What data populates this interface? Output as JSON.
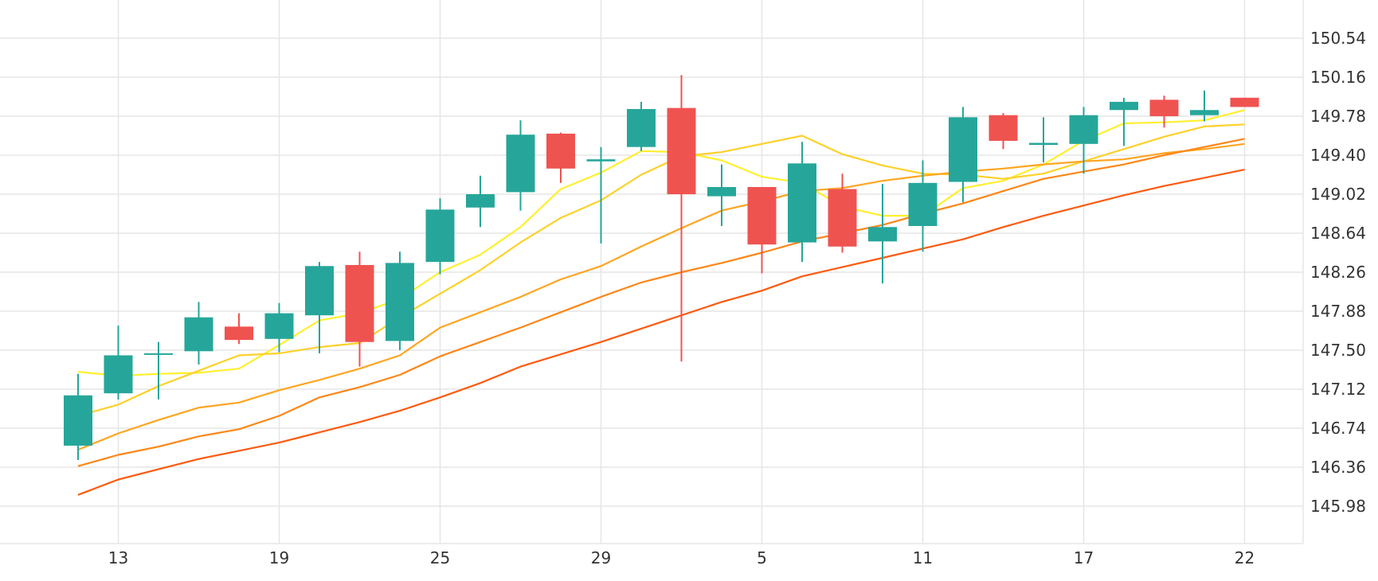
{
  "chart_data": {
    "type": "candlestick",
    "title": "",
    "xlabel": "",
    "ylabel": "",
    "x_tick_labels": [
      "13",
      "19",
      "25",
      "29",
      "5",
      "11",
      "17",
      "22"
    ],
    "x_tick_index": [
      1,
      5,
      9,
      13,
      17,
      21,
      25,
      29
    ],
    "y_tick_labels": [
      "150.54",
      "150.16",
      "149.78",
      "149.40",
      "149.02",
      "148.64",
      "148.26",
      "147.88",
      "147.50",
      "147.12",
      "146.74",
      "146.36",
      "145.98"
    ],
    "ylim": [
      145.6,
      150.84
    ],
    "grid": true,
    "colors": {
      "up": "#26a69a",
      "down": "#ef5350"
    },
    "candles": [
      {
        "open": 146.57,
        "high": 147.27,
        "low": 146.43,
        "close": 147.06
      },
      {
        "open": 147.08,
        "high": 147.74,
        "low": 147.02,
        "close": 147.45
      },
      {
        "open": 147.46,
        "high": 147.58,
        "low": 147.02,
        "close": 147.47
      },
      {
        "open": 147.49,
        "high": 147.97,
        "low": 147.36,
        "close": 147.82
      },
      {
        "open": 147.73,
        "high": 147.86,
        "low": 147.56,
        "close": 147.6
      },
      {
        "open": 147.61,
        "high": 147.96,
        "low": 147.48,
        "close": 147.86
      },
      {
        "open": 147.84,
        "high": 148.36,
        "low": 147.47,
        "close": 148.32
      },
      {
        "open": 148.33,
        "high": 148.46,
        "low": 147.34,
        "close": 147.58
      },
      {
        "open": 147.59,
        "high": 148.46,
        "low": 147.5,
        "close": 148.35
      },
      {
        "open": 148.36,
        "high": 148.98,
        "low": 148.24,
        "close": 148.87
      },
      {
        "open": 148.89,
        "high": 149.2,
        "low": 148.7,
        "close": 149.02
      },
      {
        "open": 149.04,
        "high": 149.74,
        "low": 148.86,
        "close": 149.6
      },
      {
        "open": 149.61,
        "high": 149.62,
        "low": 149.13,
        "close": 149.27
      },
      {
        "open": 149.34,
        "high": 149.48,
        "low": 148.54,
        "close": 149.36
      },
      {
        "open": 149.48,
        "high": 149.92,
        "low": 149.44,
        "close": 149.85
      },
      {
        "open": 149.86,
        "high": 150.18,
        "low": 147.39,
        "close": 149.02
      },
      {
        "open": 149.0,
        "high": 149.31,
        "low": 148.71,
        "close": 149.09
      },
      {
        "open": 149.09,
        "high": 149.09,
        "low": 148.25,
        "close": 148.53
      },
      {
        "open": 148.55,
        "high": 149.53,
        "low": 148.36,
        "close": 149.32
      },
      {
        "open": 149.07,
        "high": 149.22,
        "low": 148.45,
        "close": 148.51
      },
      {
        "open": 148.56,
        "high": 149.12,
        "low": 148.15,
        "close": 148.7
      },
      {
        "open": 148.71,
        "high": 149.35,
        "low": 148.46,
        "close": 149.13
      },
      {
        "open": 149.14,
        "high": 149.87,
        "low": 148.94,
        "close": 149.77
      },
      {
        "open": 149.79,
        "high": 149.81,
        "low": 149.46,
        "close": 149.54
      },
      {
        "open": 149.5,
        "high": 149.77,
        "low": 149.33,
        "close": 149.52
      },
      {
        "open": 149.51,
        "high": 149.87,
        "low": 149.22,
        "close": 149.79
      },
      {
        "open": 149.84,
        "high": 149.96,
        "low": 149.49,
        "close": 149.92
      },
      {
        "open": 149.94,
        "high": 149.98,
        "low": 149.67,
        "close": 149.78
      },
      {
        "open": 149.79,
        "high": 150.03,
        "low": 149.73,
        "close": 149.84
      },
      {
        "open": 149.96,
        "high": 149.96,
        "low": 149.87,
        "close": 149.87
      }
    ],
    "series": [
      {
        "color": "#ffef2e",
        "values": [
          147.29,
          147.25,
          147.27,
          147.28,
          147.32,
          147.55,
          147.79,
          147.86,
          148.0,
          148.26,
          148.43,
          148.7,
          149.07,
          149.23,
          149.44,
          149.43,
          149.35,
          149.19,
          149.13,
          148.9,
          148.81,
          148.81,
          149.08,
          149.15,
          149.31,
          149.54,
          149.71,
          149.72,
          149.74,
          149.84
        ]
      },
      {
        "color": "#fcd12a",
        "values": [
          146.86,
          146.97,
          147.15,
          147.3,
          147.45,
          147.47,
          147.53,
          147.57,
          147.82,
          148.05,
          148.28,
          148.55,
          148.79,
          148.96,
          149.21,
          149.39,
          149.43,
          149.51,
          149.59,
          149.41,
          149.3,
          149.22,
          149.21,
          149.17,
          149.22,
          149.34,
          149.46,
          149.58,
          149.68,
          149.7
        ]
      },
      {
        "color": "#ffa521",
        "values": [
          146.53,
          146.69,
          146.82,
          146.94,
          146.99,
          147.11,
          147.21,
          147.32,
          147.45,
          147.72,
          147.87,
          148.02,
          148.19,
          148.32,
          148.51,
          148.69,
          148.86,
          148.95,
          149.05,
          149.08,
          149.15,
          149.2,
          149.24,
          149.27,
          149.31,
          149.34,
          149.36,
          149.42,
          149.46,
          149.51
        ]
      },
      {
        "color": "#ff8617",
        "values": [
          146.37,
          146.48,
          146.56,
          146.66,
          146.73,
          146.86,
          147.04,
          147.14,
          147.26,
          147.44,
          147.58,
          147.72,
          147.87,
          148.02,
          148.16,
          148.26,
          148.35,
          148.45,
          148.56,
          148.64,
          148.72,
          148.83,
          148.93,
          149.05,
          149.17,
          149.24,
          149.31,
          149.4,
          149.48,
          149.56
        ]
      },
      {
        "color": "#ff5a0e",
        "values": [
          146.09,
          146.24,
          146.34,
          146.44,
          146.52,
          146.6,
          146.7,
          146.8,
          146.91,
          147.04,
          147.18,
          147.34,
          147.46,
          147.58,
          147.71,
          147.84,
          147.97,
          148.08,
          148.22,
          148.31,
          148.4,
          148.49,
          148.58,
          148.7,
          148.81,
          148.91,
          149.01,
          149.1,
          149.18,
          149.26
        ]
      }
    ]
  }
}
